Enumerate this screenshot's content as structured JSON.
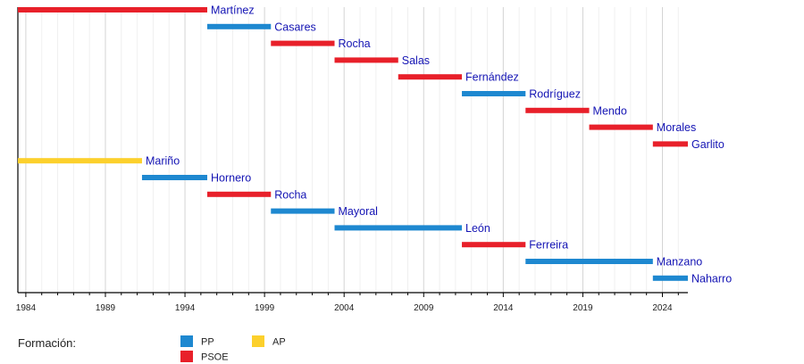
{
  "chart_data": {
    "type": "timeline",
    "title": "",
    "xlim": [
      1983.5,
      2025.6
    ],
    "x_ticks": [
      1984,
      1989,
      1994,
      1999,
      2004,
      2009,
      2014,
      2019,
      2024
    ],
    "grid": "major every 5 years, minor every year",
    "colors": {
      "PP": "#1e88d0",
      "PSOE": "#e8202a",
      "AP": "#fcd02c"
    },
    "label_color": "#1414b4",
    "rows": [
      {
        "name": "Martínez",
        "party": "PSOE",
        "start": 1983.5,
        "end": 1995.4
      },
      {
        "name": "Casares",
        "party": "PP",
        "start": 1995.4,
        "end": 1999.4
      },
      {
        "name": "Rocha",
        "party": "PSOE",
        "start": 1999.4,
        "end": 2003.4
      },
      {
        "name": "Salas",
        "party": "PSOE",
        "start": 2003.4,
        "end": 2007.4
      },
      {
        "name": "Fernández",
        "party": "PSOE",
        "start": 2007.4,
        "end": 2011.4
      },
      {
        "name": "Rodríguez",
        "party": "PP",
        "start": 2011.4,
        "end": 2015.4
      },
      {
        "name": "Mendo",
        "party": "PSOE",
        "start": 2015.4,
        "end": 2019.4
      },
      {
        "name": "Morales",
        "party": "PSOE",
        "start": 2019.4,
        "end": 2023.4
      },
      {
        "name": "Garlito",
        "party": "PSOE",
        "start": 2023.4,
        "end": 2025.6
      },
      {
        "name": "Mariño",
        "party": "AP",
        "start": 1983.5,
        "end": 1991.3
      },
      {
        "name": "Hornero",
        "party": "PP",
        "start": 1991.3,
        "end": 1995.4
      },
      {
        "name": "Rocha",
        "party": "PSOE",
        "start": 1995.4,
        "end": 1999.4
      },
      {
        "name": "Mayoral",
        "party": "PP",
        "start": 1999.4,
        "end": 2003.4
      },
      {
        "name": "León",
        "party": "PP",
        "start": 2003.4,
        "end": 2011.4
      },
      {
        "name": "Ferreira",
        "party": "PSOE",
        "start": 2011.4,
        "end": 2015.4
      },
      {
        "name": "Manzano",
        "party": "PP",
        "start": 2015.4,
        "end": 2023.4
      },
      {
        "name": "Naharro",
        "party": "PP",
        "start": 2023.4,
        "end": 2025.6
      }
    ],
    "legend": {
      "title": "Formación:",
      "entries": [
        {
          "label": "PP",
          "party": "PP"
        },
        {
          "label": "PSOE",
          "party": "PSOE"
        },
        {
          "label": "AP",
          "party": "AP"
        }
      ]
    }
  }
}
